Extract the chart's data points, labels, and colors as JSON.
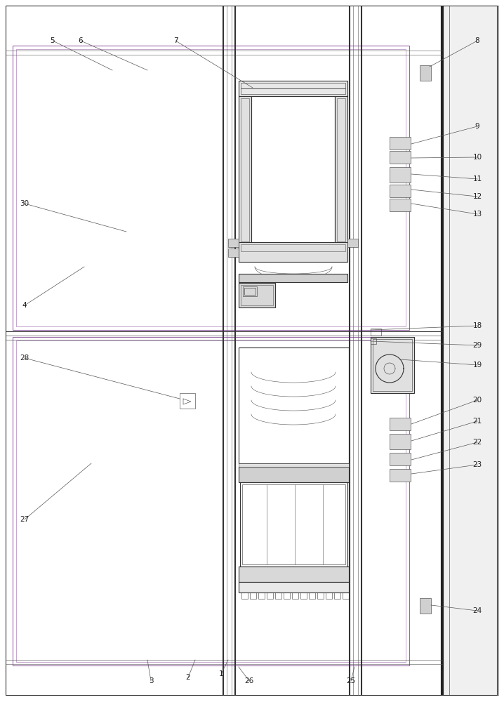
{
  "bg_color": "#ffffff",
  "line_color": "#555555",
  "dark_color": "#333333",
  "thin": 0.4,
  "med": 0.8,
  "thick": 1.5,
  "vthick": 3.0,
  "purple_color": "#9966aa",
  "figsize": [
    7.18,
    10.0
  ],
  "dpi": 100
}
